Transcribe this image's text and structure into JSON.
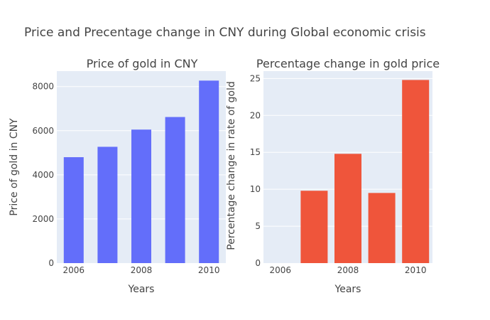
{
  "chart_data": {
    "title": "Price and Precentage change in CNY during Global economic crisis",
    "subplots": [
      {
        "type": "bar",
        "subtitle": "Price of gold in CNY",
        "xlabel": "Years",
        "ylabel": "Price of gold in CNY",
        "x": [
          2006,
          2007,
          2008,
          2009,
          2010
        ],
        "values": [
          4800,
          5270,
          6050,
          6620,
          8270
        ],
        "xlim": [
          2005.5,
          2010.5
        ],
        "ylim": [
          0,
          8700
        ],
        "xticks": [
          2006,
          2008,
          2010
        ],
        "yticks": [
          0,
          2000,
          4000,
          6000,
          8000
        ],
        "xtick_labels": [
          "2006",
          "2008",
          "2010"
        ],
        "ytick_labels": [
          "0",
          "2000",
          "4000",
          "6000",
          "8000"
        ],
        "color": "#636efa",
        "grid": true
      },
      {
        "type": "bar",
        "subtitle": "Percentage change in gold price",
        "xlabel": "Years",
        "ylabel": "Percentage change in rate of gold",
        "x": [
          2006,
          2007,
          2008,
          2009,
          2010
        ],
        "values": [
          0,
          9.8,
          14.8,
          9.5,
          24.8
        ],
        "xlim": [
          2005.5,
          2010.5
        ],
        "ylim": [
          0,
          26
        ],
        "xticks": [
          2006,
          2008,
          2010
        ],
        "yticks": [
          0,
          5,
          10,
          15,
          20,
          25
        ],
        "xtick_labels": [
          "2006",
          "2008",
          "2010"
        ],
        "ytick_labels": [
          "0",
          "5",
          "10",
          "15",
          "20",
          "25"
        ],
        "color": "#ef553b",
        "grid": true
      }
    ]
  },
  "colors": {
    "plot_bg": "#e5ecf6",
    "text": "#444444",
    "grid": "#ffffff"
  }
}
